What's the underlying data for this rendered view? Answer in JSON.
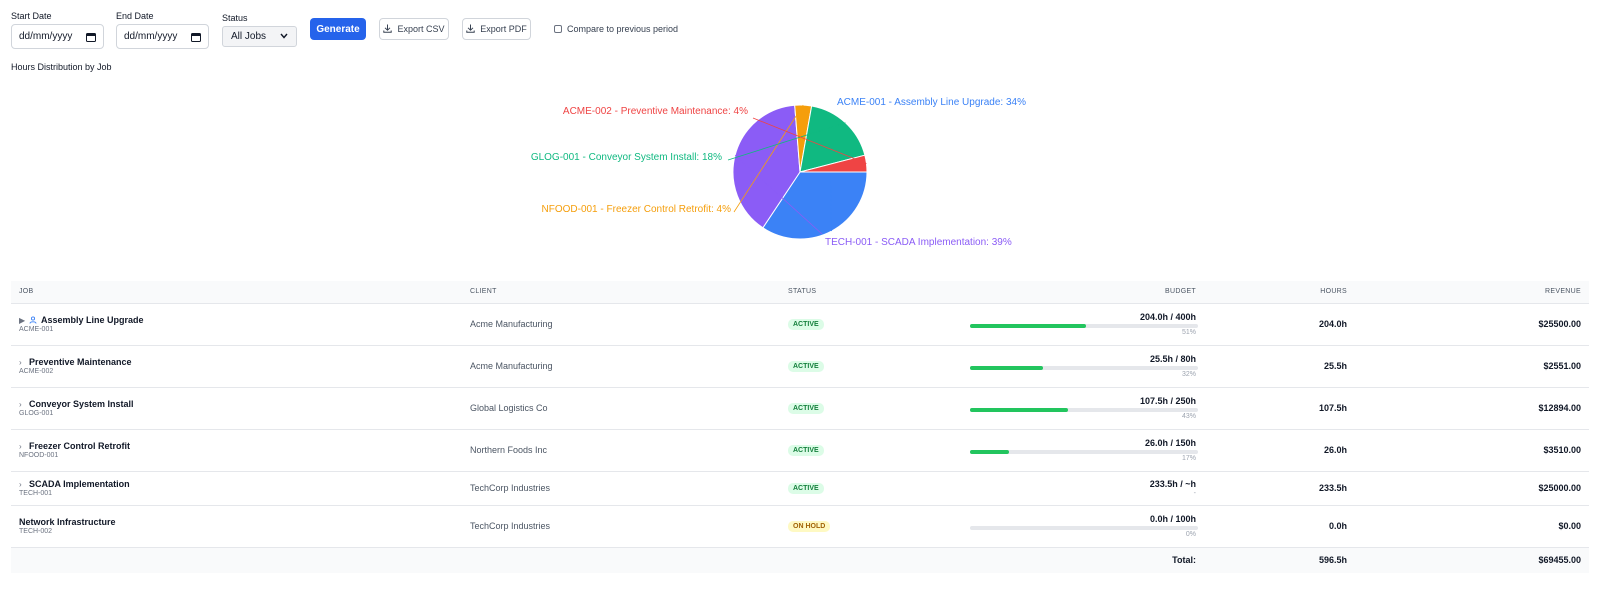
{
  "controls": {
    "start_date_label": "Start Date",
    "start_date_value": "dd/mm/yyyy",
    "end_date_label": "End Date",
    "end_date_value": "dd/mm/yyyy",
    "status_label": "Status",
    "status_value": "All Jobs",
    "generate_label": "Generate",
    "export_csv_label": "Export CSV",
    "export_pdf_label": "Export PDF",
    "compare_label": "Compare to previous period"
  },
  "chart_title": "Hours Distribution by Job",
  "chart_data": {
    "type": "pie",
    "slices": [
      {
        "label": "ACME-001 - Assembly Line Upgrade: 34%",
        "value": 34,
        "color": "#3b82f6"
      },
      {
        "label": "TECH-001 - SCADA Implementation: 39%",
        "value": 39,
        "color": "#8b5cf6"
      },
      {
        "label": "NFOOD-001 - Freezer Control Retrofit: 4%",
        "value": 4,
        "color": "#f59e0b"
      },
      {
        "label": "GLOG-001 - Conveyor System Install: 18%",
        "value": 18,
        "color": "#10b981"
      },
      {
        "label": "ACME-002 - Preventive Maintenance: 4%",
        "value": 4,
        "color": "#ef4444"
      }
    ]
  },
  "table": {
    "headers": {
      "job": "Job",
      "client": "Client",
      "status": "Status",
      "budget": "Budget",
      "hours": "Hours",
      "revenue": "Revenue"
    },
    "rows": [
      {
        "chevron": "▶",
        "has_user_icon": true,
        "name": "Assembly Line Upgrade",
        "code": "ACME-001",
        "client": "Acme Manufacturing",
        "status": "ACTIVE",
        "status_kind": "active",
        "budget": "204.0h / 400h",
        "budget_fill": 0.51,
        "pct": "51%",
        "hours": "204.0h",
        "revenue": "$25500.00"
      },
      {
        "chevron": "›",
        "has_user_icon": false,
        "name": "Preventive Maintenance",
        "code": "ACME-002",
        "client": "Acme Manufacturing",
        "status": "ACTIVE",
        "status_kind": "active",
        "budget": "25.5h / 80h",
        "budget_fill": 0.32,
        "pct": "32%",
        "hours": "25.5h",
        "revenue": "$2551.00"
      },
      {
        "chevron": "›",
        "has_user_icon": false,
        "name": "Conveyor System Install",
        "code": "GLOG-001",
        "client": "Global Logistics Co",
        "status": "ACTIVE",
        "status_kind": "active",
        "budget": "107.5h / 250h",
        "budget_fill": 0.43,
        "pct": "43%",
        "hours": "107.5h",
        "revenue": "$12894.00"
      },
      {
        "chevron": "›",
        "has_user_icon": false,
        "name": "Freezer Control Retrofit",
        "code": "NFOOD-001",
        "client": "Northern Foods Inc",
        "status": "ACTIVE",
        "status_kind": "active",
        "budget": "26.0h / 150h",
        "budget_fill": 0.17,
        "pct": "17%",
        "hours": "26.0h",
        "revenue": "$3510.00"
      },
      {
        "chevron": "›",
        "has_user_icon": false,
        "name": "SCADA Implementation",
        "code": "TECH-001",
        "client": "TechCorp Industries",
        "status": "ACTIVE",
        "status_kind": "active",
        "budget": "233.5h / ~h",
        "budget_fill": null,
        "pct": "-",
        "hours": "233.5h",
        "revenue": "$25000.00"
      },
      {
        "chevron": "",
        "has_user_icon": false,
        "name": "Network Infrastructure",
        "code": "TECH-002",
        "client": "TechCorp Industries",
        "status": "ON HOLD",
        "status_kind": "hold",
        "budget": "0.0h / 100h",
        "budget_fill": 0.0,
        "pct": "0%",
        "hours": "0.0h",
        "revenue": "$0.00"
      }
    ],
    "footer": {
      "total_label": "Total:",
      "hours": "596.5h",
      "revenue": "$69455.00"
    }
  }
}
